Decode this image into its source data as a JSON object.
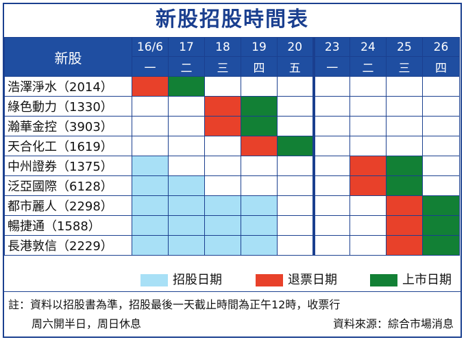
{
  "title": "新股招股時間表",
  "header": {
    "stock_label": "新股",
    "dates": [
      "16/6",
      "17",
      "18",
      "19",
      "20",
      "23",
      "24",
      "25",
      "26"
    ],
    "weekdays": [
      "一",
      "二",
      "三",
      "四",
      "五",
      "一",
      "二",
      "三",
      "四"
    ]
  },
  "rows": [
    {
      "name": "浩澤淨水（2014）",
      "cells": [
        "r",
        "l",
        "",
        "",
        "",
        "",
        "",
        "",
        ""
      ]
    },
    {
      "name": "綠色動力（1330）",
      "cells": [
        "",
        "",
        "r",
        "l",
        "",
        "",
        "",
        "",
        ""
      ]
    },
    {
      "name": "瀚華金控（3903）",
      "cells": [
        "",
        "",
        "r",
        "l",
        "",
        "",
        "",
        "",
        ""
      ]
    },
    {
      "name": "天合化工（1619）",
      "cells": [
        "",
        "",
        "",
        "r",
        "l",
        "",
        "",
        "",
        ""
      ]
    },
    {
      "name": "中州證券（1375）",
      "cells": [
        "s",
        "",
        "",
        "",
        "",
        "",
        "r",
        "l",
        ""
      ]
    },
    {
      "name": "泛亞國際（6128）",
      "cells": [
        "s",
        "s",
        "",
        "",
        "",
        "",
        "r",
        "l",
        ""
      ]
    },
    {
      "name": "都市麗人（2298）",
      "cells": [
        "s",
        "s",
        "s",
        "s",
        "",
        "",
        "",
        "r",
        "l"
      ]
    },
    {
      "name": "暢捷通（1588）",
      "cells": [
        "s",
        "s",
        "s",
        "s",
        "",
        "",
        "",
        "r",
        "l"
      ]
    },
    {
      "name": "長港敦信（2229）",
      "cells": [
        "s",
        "s",
        "s",
        "s",
        "",
        "",
        "",
        "r",
        "l"
      ]
    }
  ],
  "legend": {
    "subscription": {
      "label": "招股日期",
      "color": "#a8e0f6"
    },
    "refund": {
      "label": "退票日期",
      "color": "#e8412a"
    },
    "listing": {
      "label": "上市日期",
      "color": "#128035"
    }
  },
  "note": {
    "line1": "註：資料以招股書為準，招股最後一天截止時間為正午12時，收票行",
    "line2": "周六開半日，周日休息",
    "source": "資料來源：綜合市場消息"
  }
}
